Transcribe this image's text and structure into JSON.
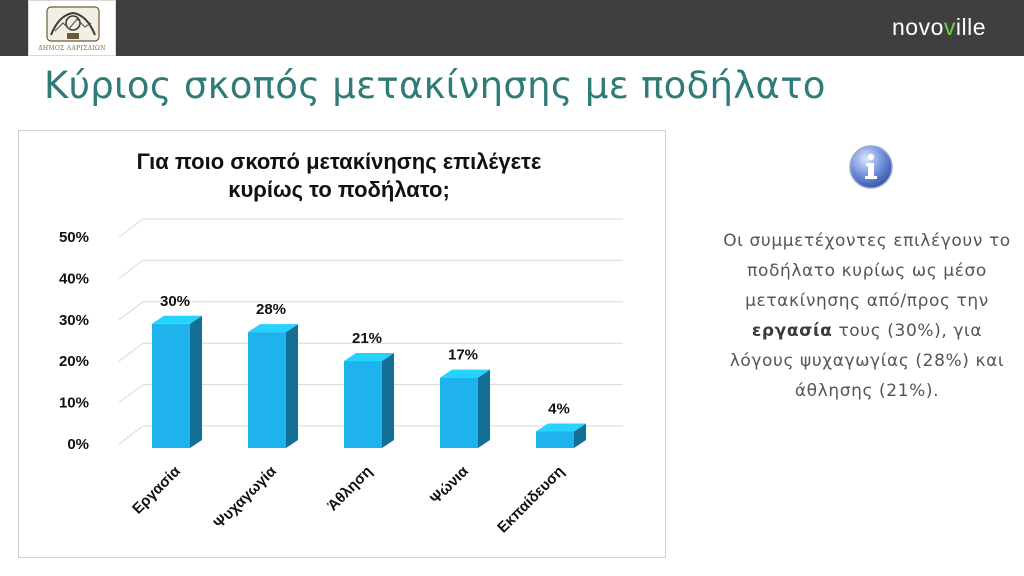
{
  "header": {
    "logo_text": "ΔΗΜΟΣ ΛΑΡΙΣΑΙΩΝ",
    "brand_prefix": "novo",
    "brand_v": "v",
    "brand_suffix": "ille"
  },
  "page_title": "Κύριος σκοπός μετακίνησης με ποδήλατο",
  "chart_data": {
    "type": "bar",
    "title": "Για ποιο σκοπό μετακίνησης επιλέγετε κυρίως το ποδήλατο;",
    "title_lines": [
      "Για ποιο σκοπό μετακίνησης επιλέγετε",
      "κυρίως το ποδήλατο;"
    ],
    "categories": [
      "Εργασία",
      "Ψυχαγωγία",
      "Άθληση",
      "Ψώνια",
      "Εκπαίδευση"
    ],
    "values": [
      30,
      28,
      21,
      17,
      4
    ],
    "data_labels": [
      "30%",
      "28%",
      "21%",
      "17%",
      "4%"
    ],
    "ylim": [
      0,
      50
    ],
    "yticks": [
      0,
      10,
      20,
      30,
      40,
      50
    ],
    "ytick_labels": [
      "0%",
      "10%",
      "20%",
      "30%",
      "40%",
      "50%"
    ],
    "xlabel": "",
    "ylabel": "",
    "grid": true,
    "bar_color": "#1fb3ee"
  },
  "note": {
    "part1": "Οι συμμετέχοντες επιλέγουν το ποδήλατο κυρίως ως μέσο μετακίνησης από/προς την ",
    "bold": "εργασία",
    "part2": " τους (30%), για λόγους ψυχαγωγίας (28%) και άθλησης (21%)."
  },
  "colors": {
    "title": "#2e7b78",
    "topbar": "#3f3f3f",
    "brand_accent": "#6fcf3f"
  }
}
